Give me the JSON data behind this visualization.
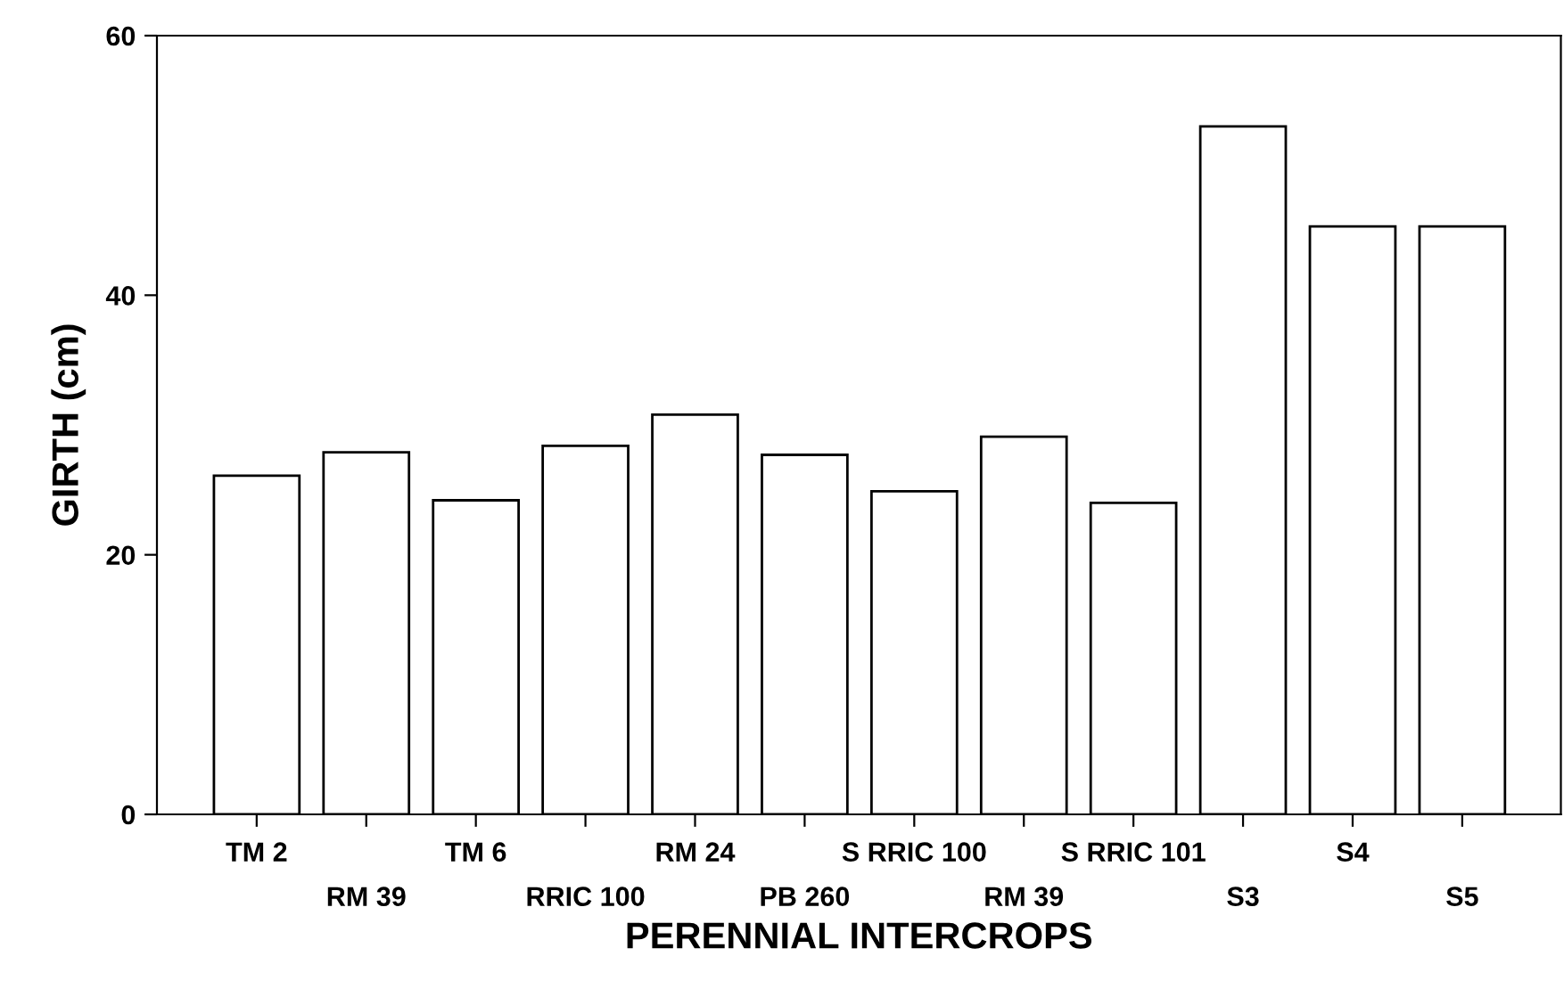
{
  "chart_data": {
    "type": "bar",
    "xlabel": "PERENNIAL INTERCROPS",
    "ylabel": "GIRTH (cm)",
    "categories": [
      "TM 2",
      "RM 39",
      "TM 6",
      "RRIC 100",
      "RM 24",
      "PB 260",
      "S RRIC 100",
      "RM 39",
      "S RRIC 101",
      "S3",
      "S4",
      "S5"
    ],
    "values": [
      26.1,
      27.9,
      24.2,
      28.4,
      30.8,
      27.7,
      24.9,
      29.1,
      24.0,
      53.0,
      45.3,
      45.3
    ],
    "color": "#ffffff",
    "ylim": [
      0,
      60
    ],
    "yticks": [
      0,
      20,
      40,
      60
    ],
    "grid": false,
    "legend": false
  }
}
